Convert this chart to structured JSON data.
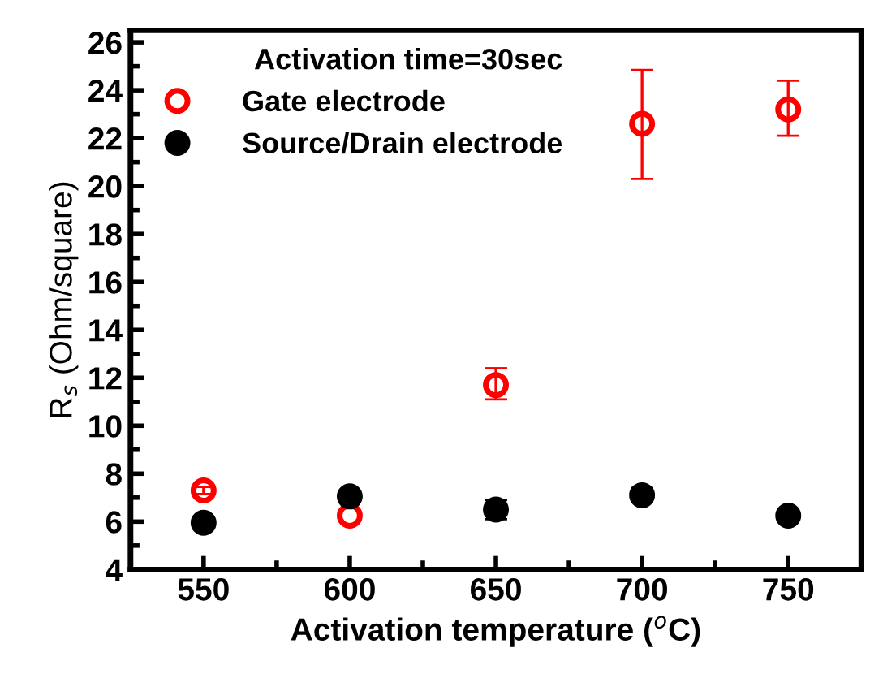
{
  "chart_data": {
    "type": "scatter",
    "xlabel": "Activation temperature ($^{o}$C)",
    "ylabel": "R$_{s}$ (Ohm/square)",
    "legend_title": "Activation time=30sec",
    "x": [
      550,
      600,
      650,
      700,
      750
    ],
    "series": [
      {
        "name": "Gate electrode",
        "color": "#ff0000",
        "values": [
          7.3,
          6.25,
          11.7,
          22.6,
          23.2
        ],
        "errors": [
          0.15,
          null,
          [
            11.1,
            12.4
          ],
          [
            20.3,
            24.85
          ],
          [
            22.1,
            24.4
          ]
        ],
        "marker": "circle"
      },
      {
        "name": "Source/Drain electrode",
        "color": "#000000",
        "values": [
          5.95,
          7.05,
          6.5,
          7.1,
          6.25
        ],
        "errors": [
          0.2,
          0.2,
          0.4,
          0.3,
          null
        ],
        "marker": "circle"
      }
    ],
    "xlim": [
      525,
      775
    ],
    "xticks": [
      550,
      600,
      650,
      700,
      750
    ],
    "ylim": [
      4,
      26.5
    ],
    "yticks": [
      4,
      6,
      8,
      10,
      12,
      14,
      16,
      18,
      20,
      22,
      24,
      26
    ],
    "grid": false,
    "legend": "top left"
  }
}
